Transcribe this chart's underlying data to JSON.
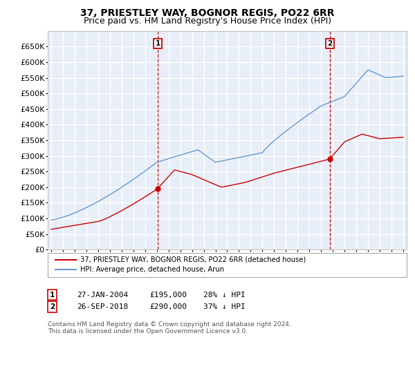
{
  "title": "37, PRIESTLEY WAY, BOGNOR REGIS, PO22 6RR",
  "subtitle": "Price paid vs. HM Land Registry's House Price Index (HPI)",
  "yticks": [
    0,
    50000,
    100000,
    150000,
    200000,
    250000,
    300000,
    350000,
    400000,
    450000,
    500000,
    550000,
    600000,
    650000
  ],
  "ylim": [
    0,
    700000
  ],
  "sale1_date": "27-JAN-2004",
  "sale1_price": 195000,
  "sale1_label": "1",
  "sale1_hpi_diff": "28% ↓ HPI",
  "sale2_date": "26-SEP-2018",
  "sale2_price": 290000,
  "sale2_label": "2",
  "sale2_hpi_diff": "37% ↓ HPI",
  "legend_line1": "37, PRIESTLEY WAY, BOGNOR REGIS, PO22 6RR (detached house)",
  "legend_line2": "HPI: Average price, detached house, Arun",
  "line_color_red": "#cc0000",
  "line_color_blue": "#6699cc",
  "background_color": "#e8eef8",
  "grid_color": "#ffffff",
  "footnote": "Contains HM Land Registry data © Crown copyright and database right 2024.\nThis data is licensed under the Open Government Licence v3.0.",
  "title_fontsize": 10,
  "subtitle_fontsize": 9,
  "tick_fontsize": 8
}
